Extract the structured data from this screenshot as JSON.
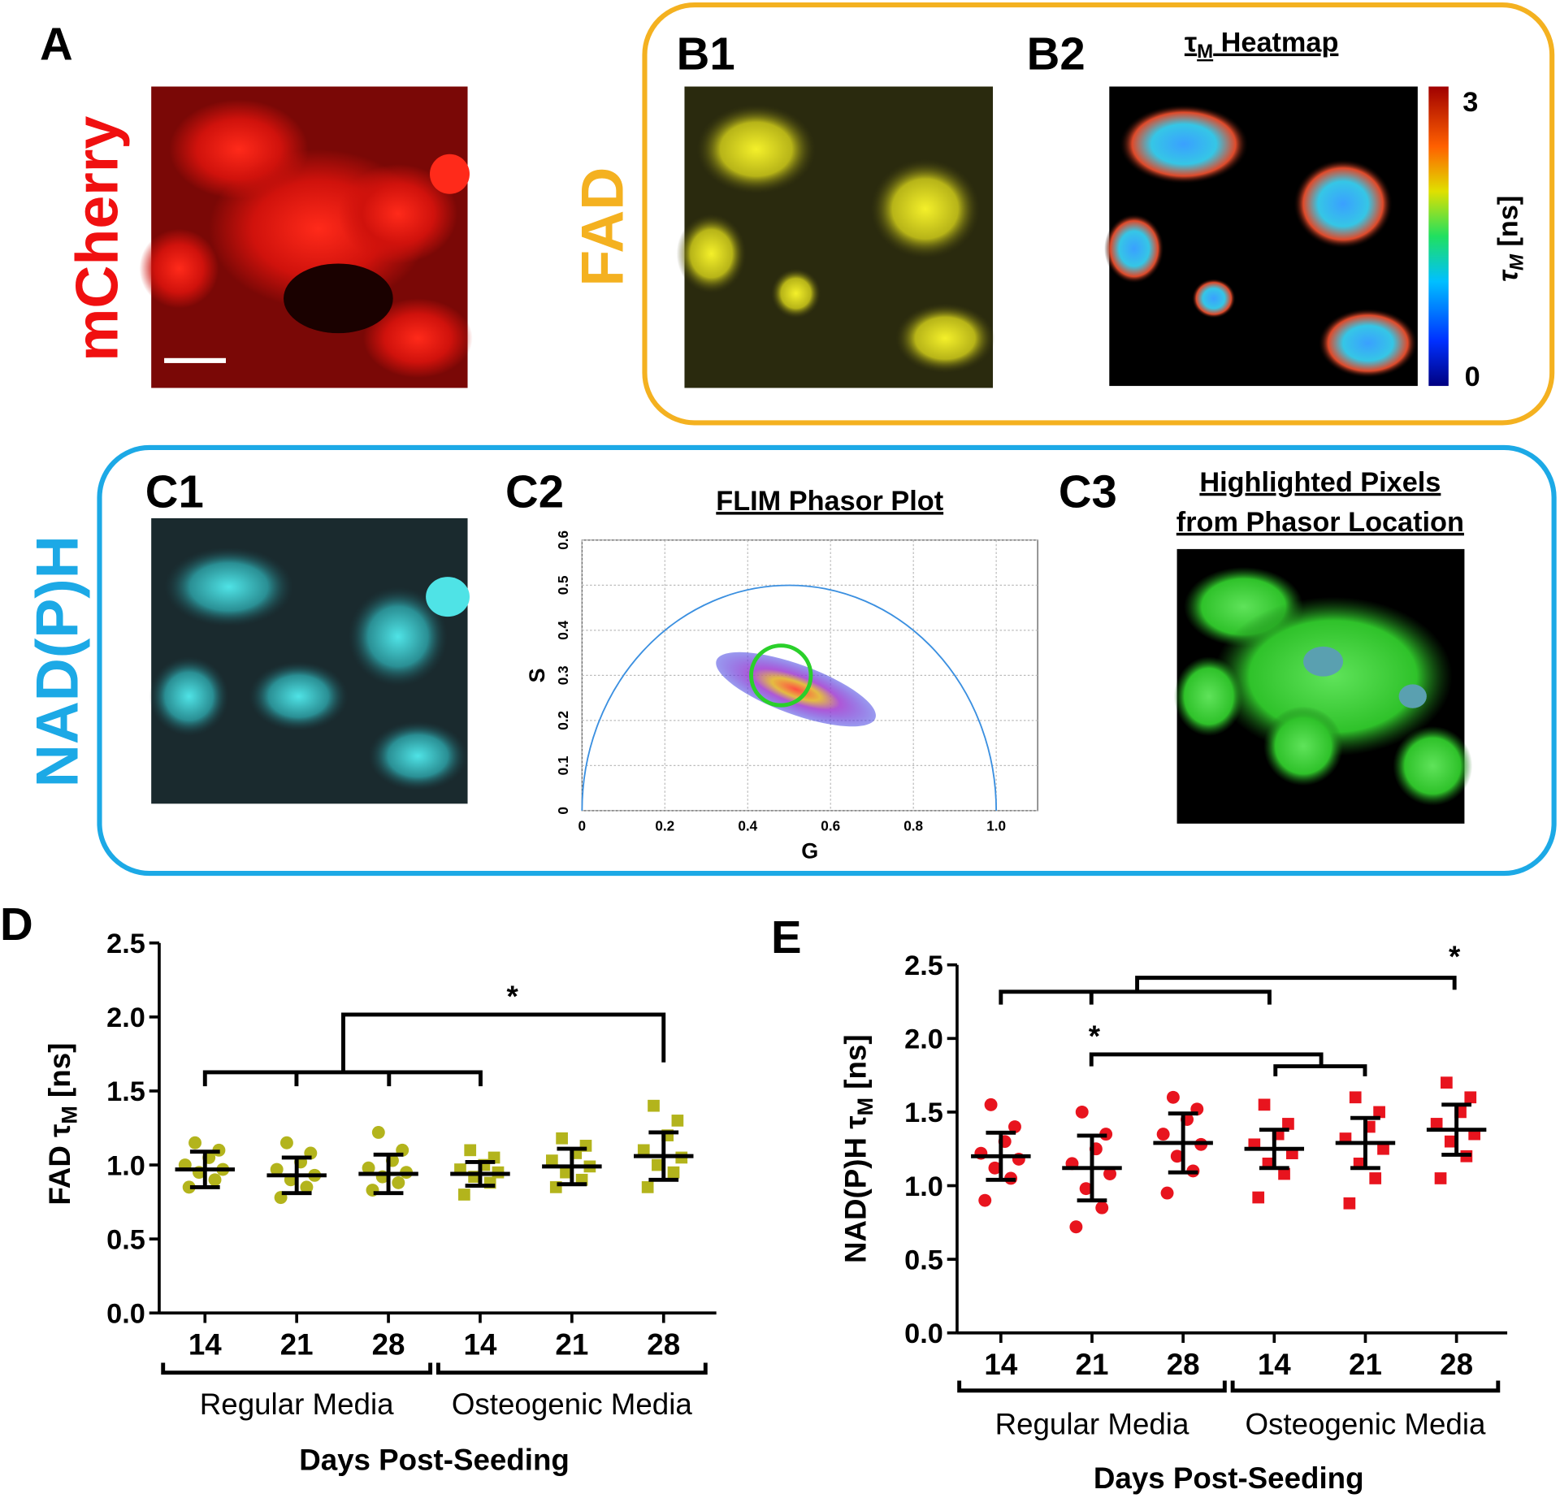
{
  "panels": {
    "a": {
      "letter": "A",
      "label": "mCherry"
    },
    "b": {
      "label": "FAD",
      "b1": "B1",
      "b2": "B2",
      "heatmap_title": [
        "τ",
        "M",
        " Heatmap"
      ],
      "colorbar_ticks": [
        3,
        0
      ],
      "colorbar_label": [
        "τ",
        "M",
        " [ns]"
      ]
    },
    "c": {
      "label": "NAD(P)H",
      "c1": "C1",
      "c2": "C2",
      "c3": "C3",
      "c3_title": [
        "Highlighted Pixels",
        "from Phasor Location"
      ]
    },
    "d": {
      "letter": "D",
      "significance": "*"
    },
    "e": {
      "letter": "E",
      "significance": [
        "*",
        "*"
      ]
    }
  },
  "chart_data": [
    {
      "type": "phasor",
      "title": "FLIM Phasor Plot",
      "x_label": "G",
      "y_label": "S",
      "xlim": [
        0,
        1.1
      ],
      "ylim": [
        0,
        0.6
      ],
      "xticks": [
        0,
        0.2,
        0.4,
        0.6,
        0.8,
        {
          "value": 1,
          "label": "1.0"
        }
      ],
      "yticks": [
        0,
        0.1,
        0.2,
        0.3,
        0.4,
        0.5,
        0.6
      ],
      "grid": true
    },
    {
      "type": "dot",
      "categories": [
        "14",
        "21",
        "28",
        "14",
        "21",
        "28"
      ],
      "groups": [
        "Regular Media",
        "Osteogenic Media"
      ],
      "x_label": "Days Post-Seeding",
      "y_label": [
        "FAD τ",
        "M",
        " [ns]"
      ],
      "ylim": [
        0,
        2.5
      ],
      "yticks": [
        {
          "value": 0,
          "label": "0.0"
        },
        0.5,
        {
          "value": 1,
          "label": "1.0"
        },
        1.5,
        {
          "value": 2,
          "label": "2.0"
        },
        2.5
      ],
      "color": "#b3b41c",
      "markers": [
        "circle",
        "circle",
        "circle",
        "square",
        "square",
        "square"
      ],
      "values": [
        0.97,
        0.93,
        0.94,
        0.94,
        0.99,
        1.06
      ],
      "errors": [
        0.12,
        0.12,
        0.13,
        0.08,
        0.12,
        0.16
      ],
      "points": [
        [
          0.85,
          0.9,
          0.95,
          0.97,
          1.0,
          1.05,
          1.1,
          1.15
        ],
        [
          0.78,
          0.85,
          0.9,
          0.93,
          0.97,
          1.02,
          1.08,
          1.15
        ],
        [
          0.83,
          0.88,
          0.92,
          0.95,
          0.98,
          1.03,
          1.1,
          1.22
        ],
        [
          0.8,
          0.88,
          0.92,
          0.95,
          0.97,
          1.0,
          1.05,
          1.1
        ],
        [
          0.85,
          0.9,
          0.95,
          0.99,
          1.03,
          1.08,
          1.13,
          1.18
        ],
        [
          0.85,
          0.95,
          1.0,
          1.05,
          1.1,
          1.2,
          1.3,
          1.4
        ]
      ]
    },
    {
      "type": "dot",
      "categories": [
        "14",
        "21",
        "28",
        "14",
        "21",
        "28"
      ],
      "groups": [
        "Regular Media",
        "Osteogenic Media"
      ],
      "x_label": "Days Post-Seeding",
      "y_label": [
        "NAD(P)H τ",
        "M",
        " [ns]"
      ],
      "ylim": [
        0,
        2.5
      ],
      "yticks": [
        {
          "value": 0,
          "label": "0.0"
        },
        0.5,
        {
          "value": 1,
          "label": "1.0"
        },
        1.5,
        {
          "value": 2,
          "label": "2.0"
        },
        2.5
      ],
      "color": "#e8141e",
      "markers": [
        "circle",
        "circle",
        "circle",
        "square",
        "square",
        "square"
      ],
      "values": [
        1.2,
        1.12,
        1.29,
        1.25,
        1.29,
        1.38
      ],
      "errors": [
        0.16,
        0.22,
        0.2,
        0.13,
        0.17,
        0.17
      ],
      "points": [
        [
          0.9,
          1.05,
          1.12,
          1.18,
          1.22,
          1.3,
          1.4,
          1.55
        ],
        [
          0.72,
          0.85,
          0.98,
          1.08,
          1.15,
          1.25,
          1.35,
          1.5
        ],
        [
          0.95,
          1.1,
          1.2,
          1.28,
          1.35,
          1.45,
          1.52,
          1.6
        ],
        [
          0.92,
          1.08,
          1.15,
          1.22,
          1.28,
          1.35,
          1.42,
          1.55
        ],
        [
          0.88,
          1.05,
          1.15,
          1.25,
          1.32,
          1.4,
          1.5,
          1.6
        ],
        [
          1.05,
          1.2,
          1.3,
          1.35,
          1.42,
          1.5,
          1.6,
          1.7
        ]
      ]
    }
  ]
}
